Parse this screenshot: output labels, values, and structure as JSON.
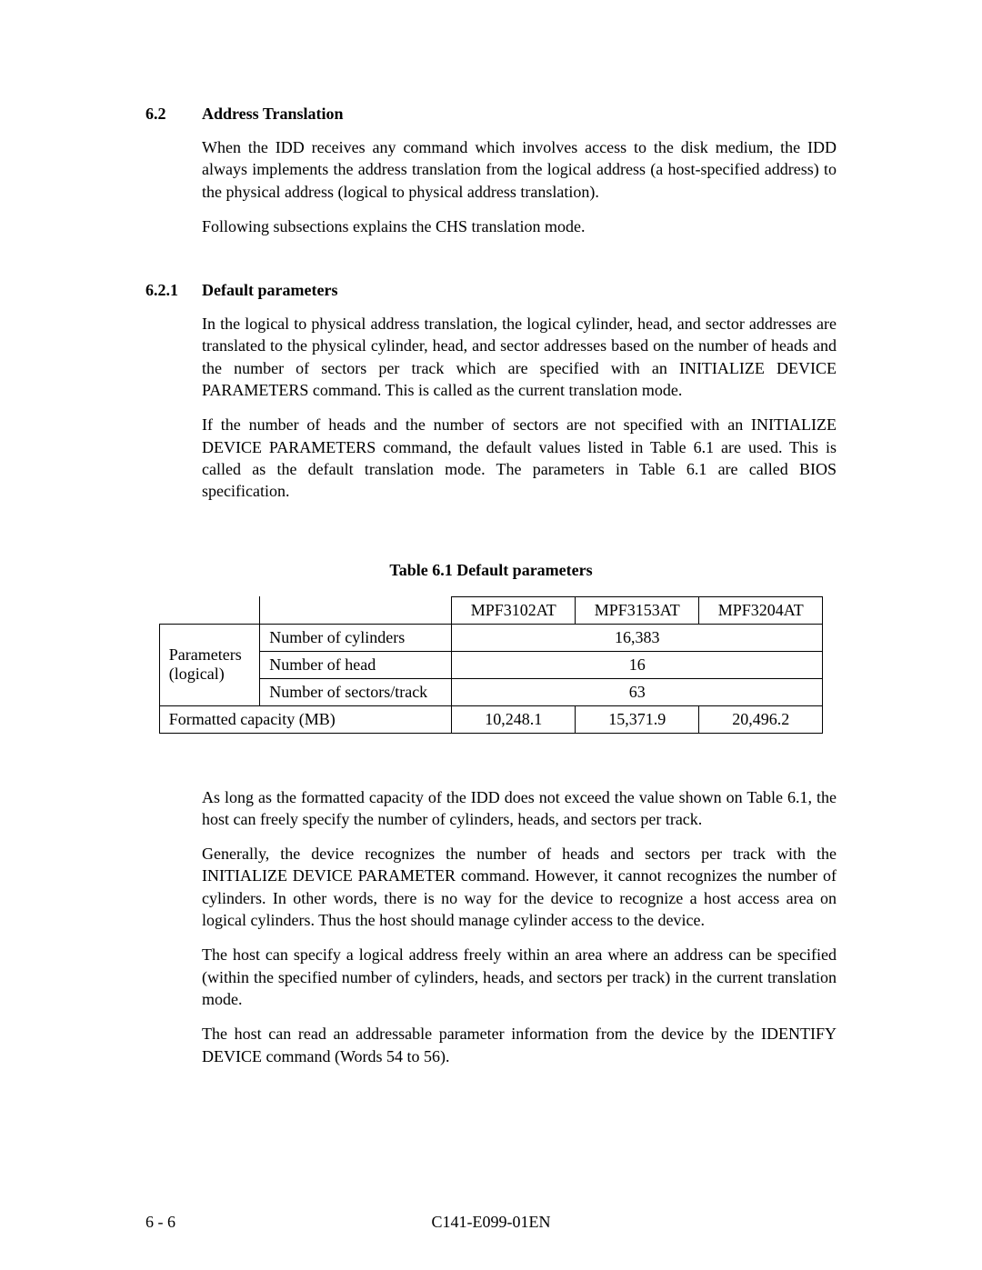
{
  "section62": {
    "num": "6.2",
    "title": "Address Translation",
    "p1": "When the IDD receives any command which involves access to the disk medium, the IDD always implements the address translation from the logical address (a host-specified address) to the physical address (logical to physical address translation).",
    "p2": "Following subsections explains the CHS translation mode."
  },
  "section621": {
    "num": "6.2.1",
    "title": "Default parameters",
    "p1": "In the logical to physical address translation, the logical cylinder, head, and sector addresses are translated to the physical cylinder, head, and sector addresses based on the number of heads and the number of sectors per track which are specified with an INITIALIZE DEVICE PARAMETERS command.  This is called as the current translation mode.",
    "p2": "If the number of heads and the number of sectors are not specified with an INITIALIZE DEVICE PARAMETERS command, the default values listed in Table 6.1 are used.  This is called as the default translation mode.  The parameters in Table 6.1 are called BIOS specification."
  },
  "table": {
    "caption": "Table 6.1    Default parameters",
    "headers": {
      "c": "MPF3102AT",
      "d": "MPF3153AT",
      "e": "MPF3204AT"
    },
    "rowgroup_label": "Parameters (logical)",
    "rows": {
      "cyl": {
        "label": "Number of cylinders",
        "val": "16,383"
      },
      "head": {
        "label": "Number of head",
        "val": "16"
      },
      "spt": {
        "label": "Number of sectors/track",
        "val": "63"
      }
    },
    "cap": {
      "label": "Formatted capacity (MB)",
      "c": "10,248.1",
      "d": "15,371.9",
      "e": "20,496.2"
    }
  },
  "after": {
    "p1": "As long as the formatted capacity of the IDD does not exceed the value shown on Table 6.1, the host can freely specify the number of cylinders, heads, and sectors per track.",
    "p2": "Generally, the device recognizes the number of heads and sectors per track with the INITIALIZE DEVICE PARAMETER command.  However, it cannot recognizes the number of cylinders. In other words, there is no way for the device to recognize a host access area on logical cylinders.  Thus the host should manage cylinder access to the device.",
    "p3": "The host can specify a logical address freely within an area where an address can be specified (within the specified number of cylinders, heads, and sectors per track) in the current translation mode.",
    "p4": "The host can read an addressable parameter information from the device by the IDENTIFY DEVICE command (Words 54 to 56)."
  },
  "footer": {
    "page": "6 - 6",
    "doc": "C141-E099-01EN"
  }
}
